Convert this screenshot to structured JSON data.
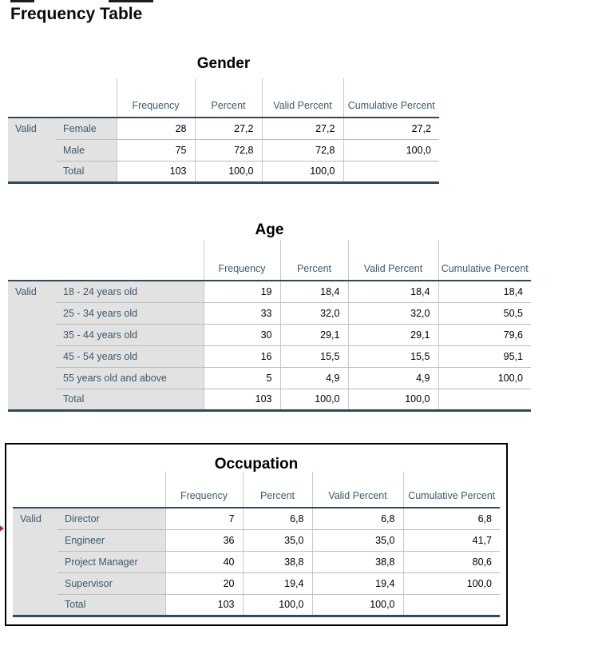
{
  "page": {
    "heading": "Frequency Table"
  },
  "columns": [
    "Frequency",
    "Percent",
    "Valid Percent",
    "Cumulative Percent"
  ],
  "stub_label": "Valid",
  "tables": [
    {
      "id": "gender",
      "title": "Gender",
      "rows": [
        {
          "label": "Female",
          "values": [
            "28",
            "27,2",
            "27,2",
            "27,2"
          ]
        },
        {
          "label": "Male",
          "values": [
            "75",
            "72,8",
            "72,8",
            "100,0"
          ]
        },
        {
          "label": "Total",
          "values": [
            "103",
            "100,0",
            "100,0",
            ""
          ]
        }
      ]
    },
    {
      "id": "age",
      "title": "Age",
      "rows": [
        {
          "label": "18 - 24 years old",
          "values": [
            "19",
            "18,4",
            "18,4",
            "18,4"
          ]
        },
        {
          "label": "25 - 34 years old",
          "values": [
            "33",
            "32,0",
            "32,0",
            "50,5"
          ]
        },
        {
          "label": "35 - 44 years old",
          "values": [
            "30",
            "29,1",
            "29,1",
            "79,6"
          ]
        },
        {
          "label": "45 - 54 years old",
          "values": [
            "16",
            "15,5",
            "15,5",
            "95,1"
          ]
        },
        {
          "label": "55 years old and above",
          "values": [
            "5",
            "4,9",
            "4,9",
            "100,0"
          ]
        },
        {
          "label": "Total",
          "values": [
            "103",
            "100,0",
            "100,0",
            ""
          ]
        }
      ]
    },
    {
      "id": "occupation",
      "title": "Occupation",
      "selected": true,
      "rows": [
        {
          "label": "Director",
          "values": [
            "7",
            "6,8",
            "6,8",
            "6,8"
          ]
        },
        {
          "label": "Engineer",
          "values": [
            "36",
            "35,0",
            "35,0",
            "41,7"
          ]
        },
        {
          "label": "Project Manager",
          "values": [
            "40",
            "38,8",
            "38,8",
            "80,6"
          ]
        },
        {
          "label": "Supervisor",
          "values": [
            "20",
            "19,4",
            "19,4",
            "100,0"
          ]
        },
        {
          "label": "Total",
          "values": [
            "103",
            "100,0",
            "100,0",
            ""
          ]
        }
      ]
    }
  ],
  "style": {
    "slate": "#3d5a6c",
    "dark": "#31495a",
    "stub": "#e2e2e2",
    "grid": "#c9c9c9",
    "rowline": "#bcbcbc",
    "selborder": "#000000",
    "marker": "#c9211e"
  }
}
